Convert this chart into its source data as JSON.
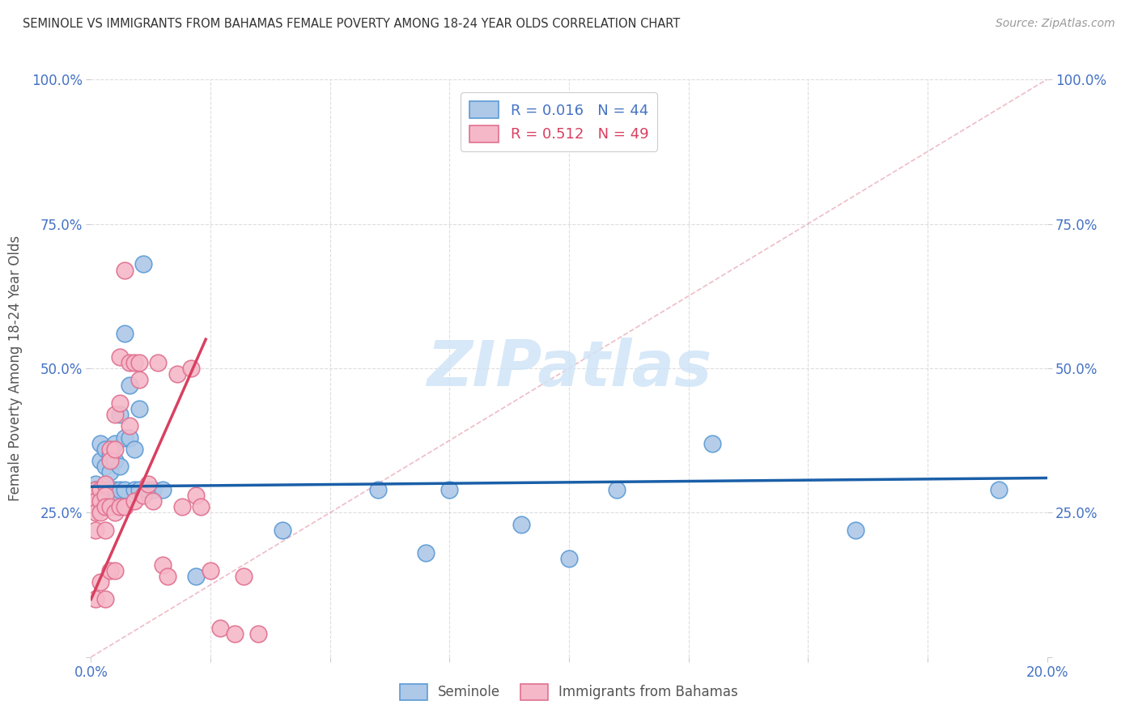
{
  "title": "SEMINOLE VS IMMIGRANTS FROM BAHAMAS FEMALE POVERTY AMONG 18-24 YEAR OLDS CORRELATION CHART",
  "source": "Source: ZipAtlas.com",
  "ylabel": "Female Poverty Among 18-24 Year Olds",
  "xlim": [
    0.0,
    0.2
  ],
  "ylim": [
    0.0,
    1.0
  ],
  "yticks": [
    0.0,
    0.25,
    0.5,
    0.75,
    1.0
  ],
  "xticks": [
    0.0,
    0.025,
    0.05,
    0.075,
    0.1,
    0.125,
    0.15,
    0.175,
    0.2
  ],
  "legend_r1": "R = 0.016",
  "legend_n1": "N = 44",
  "legend_r2": "R = 0.512",
  "legend_n2": "N = 49",
  "seminole_color": "#aec8e8",
  "bahamas_color": "#f5b8c8",
  "seminole_edge": "#5b9bd5",
  "bahamas_edge": "#e07090",
  "regression_blue": "#1a5fa8",
  "regression_pink": "#d94060",
  "ref_line_color": "#e8a0b0",
  "tick_color": "#cccccc",
  "grid_color": "#dddddd",
  "axis_label_color": "#4472c4",
  "watermark_color": "#d0e4f7",
  "seminole_x": [
    0.001,
    0.001,
    0.002,
    0.002,
    0.002,
    0.003,
    0.003,
    0.003,
    0.003,
    0.004,
    0.004,
    0.004,
    0.004,
    0.005,
    0.005,
    0.005,
    0.005,
    0.006,
    0.006,
    0.006,
    0.007,
    0.007,
    0.007,
    0.008,
    0.008,
    0.009,
    0.009,
    0.01,
    0.01,
    0.011,
    0.012,
    0.013,
    0.015,
    0.022,
    0.04,
    0.06,
    0.07,
    0.075,
    0.09,
    0.1,
    0.11,
    0.13,
    0.16,
    0.19
  ],
  "seminole_y": [
    0.3,
    0.29,
    0.37,
    0.34,
    0.29,
    0.36,
    0.33,
    0.29,
    0.27,
    0.35,
    0.32,
    0.29,
    0.27,
    0.37,
    0.34,
    0.29,
    0.27,
    0.42,
    0.33,
    0.29,
    0.56,
    0.38,
    0.29,
    0.47,
    0.38,
    0.36,
    0.29,
    0.43,
    0.29,
    0.68,
    0.29,
    0.29,
    0.29,
    0.14,
    0.22,
    0.29,
    0.18,
    0.29,
    0.23,
    0.17,
    0.29,
    0.37,
    0.22,
    0.29
  ],
  "bahamas_x": [
    0.001,
    0.001,
    0.001,
    0.001,
    0.001,
    0.002,
    0.002,
    0.002,
    0.002,
    0.003,
    0.003,
    0.003,
    0.003,
    0.003,
    0.004,
    0.004,
    0.004,
    0.004,
    0.005,
    0.005,
    0.005,
    0.005,
    0.006,
    0.006,
    0.006,
    0.007,
    0.007,
    0.008,
    0.008,
    0.009,
    0.009,
    0.01,
    0.01,
    0.011,
    0.012,
    0.013,
    0.014,
    0.015,
    0.016,
    0.018,
    0.019,
    0.021,
    0.022,
    0.023,
    0.025,
    0.027,
    0.03,
    0.032,
    0.035
  ],
  "bahamas_y": [
    0.29,
    0.27,
    0.25,
    0.22,
    0.1,
    0.29,
    0.27,
    0.25,
    0.13,
    0.3,
    0.28,
    0.26,
    0.22,
    0.1,
    0.36,
    0.34,
    0.26,
    0.15,
    0.42,
    0.36,
    0.25,
    0.15,
    0.52,
    0.44,
    0.26,
    0.67,
    0.26,
    0.51,
    0.4,
    0.51,
    0.27,
    0.51,
    0.48,
    0.28,
    0.3,
    0.27,
    0.51,
    0.16,
    0.14,
    0.49,
    0.26,
    0.5,
    0.28,
    0.26,
    0.15,
    0.05,
    0.04,
    0.14,
    0.04
  ],
  "blue_line_x": [
    0.0,
    0.2
  ],
  "blue_line_y": [
    0.295,
    0.31
  ],
  "pink_line_x": [
    0.0,
    0.024
  ],
  "pink_line_y": [
    0.1,
    0.55
  ]
}
